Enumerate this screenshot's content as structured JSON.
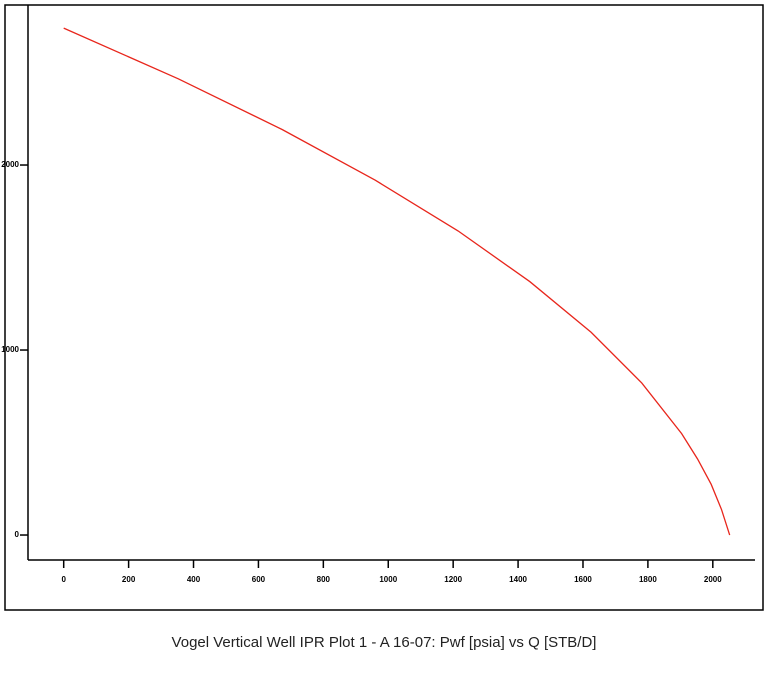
{
  "chart_data": {
    "type": "line",
    "title": "Vogel Vertical Well IPR Plot 1 - A 16-07: Pwf [psia] vs Q [STB/D]",
    "x": [
      0,
      353,
      673,
      960,
      1215,
      1436,
      1625,
      1781,
      1904,
      1953,
      1995,
      2027,
      2052
    ],
    "series": [
      {
        "name": "Pwf",
        "color": "#e8261c",
        "values": [
          2740,
          2466,
          2192,
          1918,
          1644,
          1370,
          1096,
          822,
          548,
          411,
          274,
          137,
          0
        ]
      }
    ],
    "xlim": [
      -110,
      2130
    ],
    "xticks": [
      0,
      200,
      400,
      600,
      800,
      1000,
      1200,
      1400,
      1600,
      1800,
      2000
    ],
    "ylim": [
      -135,
      2865
    ],
    "yticks": [
      0,
      1000,
      2000
    ],
    "grid": false
  }
}
